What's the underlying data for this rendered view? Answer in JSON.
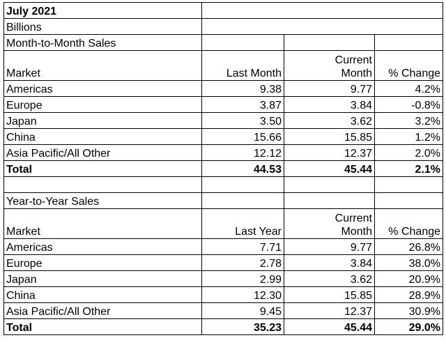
{
  "title": "July 2021",
  "unit": "Billions",
  "mtm": {
    "section_label": "Month-to-Month Sales",
    "headers": {
      "market": "Market",
      "prev": "Last Month",
      "current_line1": "Current",
      "current_line2": "Month",
      "change": "% Change"
    },
    "rows": [
      {
        "market": "Americas",
        "prev": "9.38",
        "current": "9.77",
        "change": "4.2%"
      },
      {
        "market": "Europe",
        "prev": "3.87",
        "current": "3.84",
        "change": "-0.8%"
      },
      {
        "market": "Japan",
        "prev": "3.50",
        "current": "3.62",
        "change": "3.2%"
      },
      {
        "market": "China",
        "prev": "15.66",
        "current": "15.85",
        "change": "1.2%"
      },
      {
        "market": "Asia Pacific/All Other",
        "prev": "12.12",
        "current": "12.37",
        "change": "2.0%"
      }
    ],
    "total": {
      "market": "Total",
      "prev": "44.53",
      "current": "45.44",
      "change": "2.1%"
    }
  },
  "yty": {
    "section_label": "Year-to-Year Sales",
    "headers": {
      "market": "Market",
      "prev": "Last Year",
      "current_line1": "Current",
      "current_line2": "Month",
      "change": "% Change"
    },
    "rows": [
      {
        "market": "Americas",
        "prev": "7.71",
        "current": "9.77",
        "change": "26.8%"
      },
      {
        "market": "Europe",
        "prev": "2.78",
        "current": "3.84",
        "change": "38.0%"
      },
      {
        "market": "Japan",
        "prev": "2.99",
        "current": "3.62",
        "change": "20.9%"
      },
      {
        "market": "China",
        "prev": "12.30",
        "current": "15.85",
        "change": "28.9%"
      },
      {
        "market": "Asia Pacific/All Other",
        "prev": "9.45",
        "current": "12.37",
        "change": "30.9%"
      }
    ],
    "total": {
      "market": "Total",
      "prev": "35.23",
      "current": "45.44",
      "change": "29.0%"
    }
  }
}
